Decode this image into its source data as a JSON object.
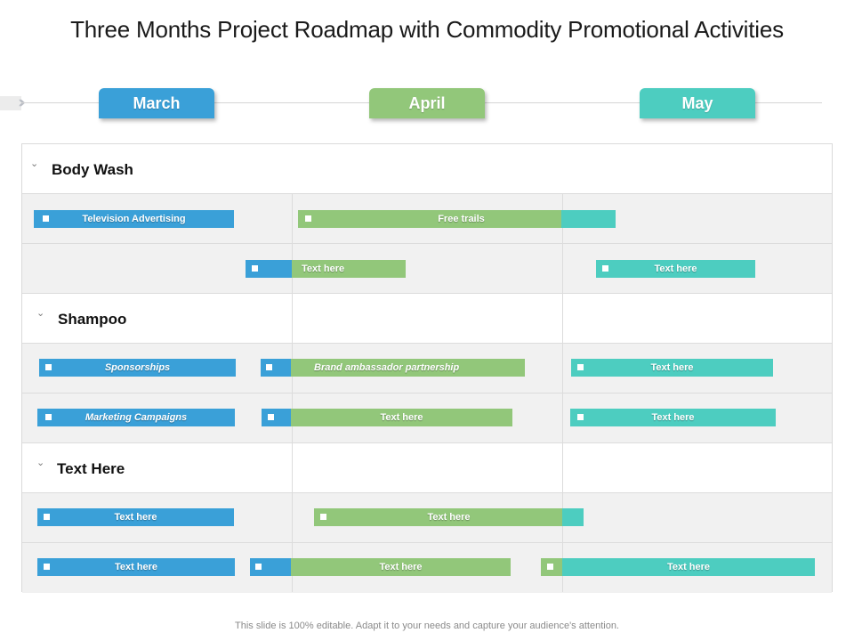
{
  "title": "Three Months Project Roadmap with Commodity Promotional Activities",
  "colors": {
    "blue": "#3aa0d8",
    "green": "#92c77a",
    "teal": "#4dcdc0"
  },
  "months": [
    {
      "label": "March",
      "color": "#3aa0d8"
    },
    {
      "label": "April",
      "color": "#92c77a"
    },
    {
      "label": "May",
      "color": "#4dcdc0"
    }
  ],
  "sections": [
    {
      "title": "Body Wash"
    },
    {
      "title": "Shampoo"
    },
    {
      "title": "Text Here"
    }
  ],
  "tasks": [
    {
      "label": "Television Advertising",
      "italic": false
    },
    {
      "label": "Free trails",
      "italic": false
    },
    {
      "label": "Text here",
      "italic": false
    },
    {
      "label": "Text here",
      "italic": false
    },
    {
      "label": "Sponsorships",
      "italic": true
    },
    {
      "label": "Brand ambassador partnership",
      "italic": true
    },
    {
      "label": "Text here",
      "italic": false
    },
    {
      "label": "Marketing Campaigns",
      "italic": true
    },
    {
      "label": "Text here",
      "italic": false
    },
    {
      "label": "Text here",
      "italic": false
    },
    {
      "label": "Text here",
      "italic": false
    },
    {
      "label": "Text here",
      "italic": false
    },
    {
      "label": "Text here",
      "italic": false
    },
    {
      "label": "Text here",
      "italic": false
    },
    {
      "label": "Text here",
      "italic": false
    }
  ],
  "footer": "This slide is 100% editable. Adapt it to your needs and capture your audience's attention."
}
